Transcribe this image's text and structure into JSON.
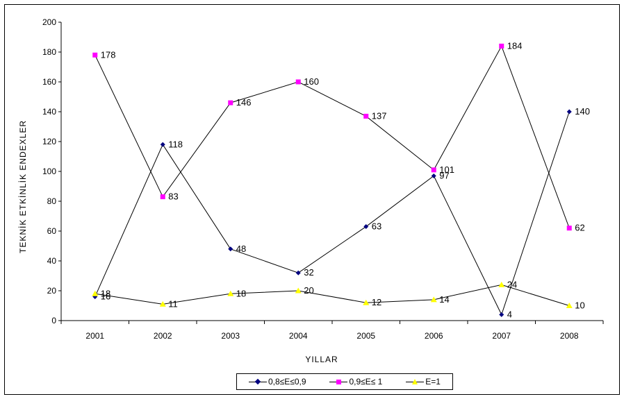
{
  "chart_data": {
    "type": "line",
    "title": "",
    "xlabel": "YILLAR",
    "ylabel": "TEKNİK ETKİNLİK ENDEXLER",
    "ylim": [
      0,
      200
    ],
    "yticks": [
      0,
      20,
      40,
      60,
      80,
      100,
      120,
      140,
      160,
      180,
      200
    ],
    "categories": [
      "2001",
      "2002",
      "2003",
      "2004",
      "2005",
      "2006",
      "2007",
      "2008"
    ],
    "grid": false,
    "legend_position": "bottom",
    "series": [
      {
        "name": "0,8≤E≤0,9",
        "values": [
          16,
          118,
          48,
          32,
          63,
          97,
          4,
          140
        ],
        "color": "#000080",
        "marker": "diamond"
      },
      {
        "name": "0,9≤E≤ 1",
        "values": [
          178,
          83,
          146,
          160,
          137,
          101,
          184,
          62
        ],
        "color": "#ff00ff",
        "marker": "square"
      },
      {
        "name": "E=1",
        "values": [
          18,
          11,
          18,
          20,
          12,
          14,
          24,
          10
        ],
        "color": "#ffff00",
        "marker": "triangle"
      }
    ]
  }
}
